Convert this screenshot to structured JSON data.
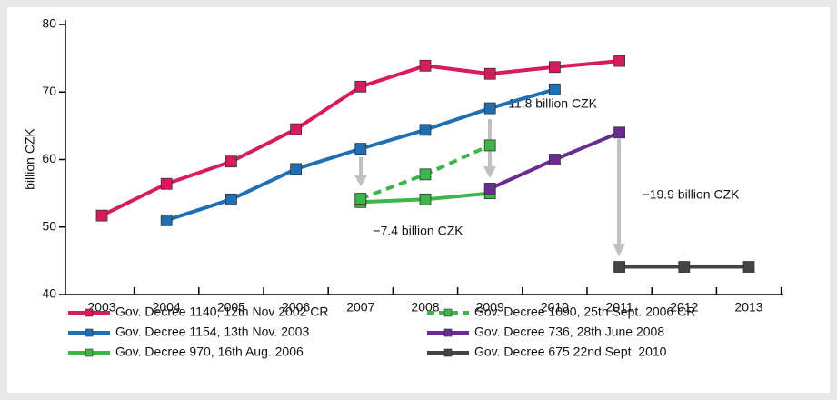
{
  "chart_data": {
    "type": "line",
    "ylabel": "billion CZK",
    "categories": [
      "2003",
      "2004",
      "2005",
      "2006",
      "2007",
      "2008",
      "2009",
      "2010",
      "2011",
      "2012",
      "2013"
    ],
    "series": [
      {
        "name": "Gov. Decree 1140, 12th Nov 2002 CR",
        "color": "#d81b5f",
        "dashed": false,
        "values": [
          51.7,
          56.4,
          59.7,
          64.5,
          70.8,
          73.9,
          72.7,
          73.7,
          74.6,
          null,
          null
        ]
      },
      {
        "name": "Gov. Decree 1154, 13th Nov. 2003",
        "color": "#1f6fb5",
        "dashed": false,
        "values": [
          null,
          51.0,
          54.1,
          58.6,
          61.6,
          64.4,
          67.6,
          70.4,
          null,
          null,
          null
        ]
      },
      {
        "name": "Gov. Decree 970, 16th Aug. 2006",
        "color": "#3db54a",
        "dashed": false,
        "values": [
          null,
          null,
          null,
          null,
          53.7,
          54.1,
          55.0,
          null,
          null,
          null,
          null
        ]
      },
      {
        "name": "Gov. Decree 1090, 25th Sept. 2006 CR",
        "color": "#3db54a",
        "dashed": true,
        "values": [
          null,
          null,
          null,
          null,
          54.2,
          57.8,
          62.1,
          null,
          null,
          null,
          null
        ]
      },
      {
        "name": "Gov. Decree 736, 28th June 2008",
        "color": "#6a2c91",
        "dashed": false,
        "values": [
          null,
          null,
          null,
          null,
          null,
          null,
          55.7,
          60.0,
          64.0,
          null,
          null
        ]
      },
      {
        "name": "Gov. Decree 675 22nd Sept.  2010",
        "color": "#444444",
        "dashed": false,
        "values": [
          null,
          null,
          null,
          null,
          null,
          null,
          null,
          null,
          44.1,
          44.1,
          44.1
        ]
      }
    ],
    "legend_order": [
      0,
      3,
      1,
      4,
      2,
      5
    ],
    "annotations": [
      "−11.8 billion CZK",
      "−7.4 billion CZK",
      "−19.9 billion CZK"
    ],
    "ylim": [
      40,
      80
    ],
    "yticks": [
      40,
      50,
      60,
      70,
      80
    ]
  }
}
